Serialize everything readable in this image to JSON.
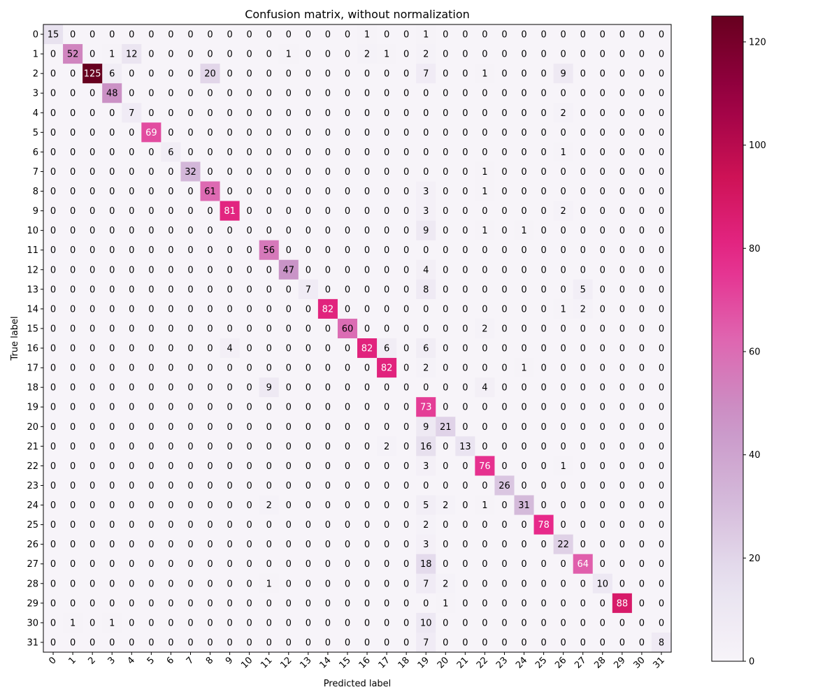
{
  "chart_data": {
    "type": "heatmap",
    "title": "Confusion matrix, without normalization",
    "xlabel": "Predicted label",
    "ylabel": "True label",
    "x_categories": [
      "0",
      "1",
      "2",
      "3",
      "4",
      "5",
      "6",
      "7",
      "8",
      "9",
      "10",
      "11",
      "12",
      "13",
      "14",
      "15",
      "16",
      "17",
      "18",
      "19",
      "20",
      "21",
      "22",
      "23",
      "24",
      "25",
      "26",
      "27",
      "28",
      "29",
      "30",
      "31"
    ],
    "y_categories": [
      "0",
      "1",
      "2",
      "3",
      "4",
      "5",
      "6",
      "7",
      "8",
      "9",
      "10",
      "11",
      "12",
      "13",
      "14",
      "15",
      "16",
      "17",
      "18",
      "19",
      "20",
      "21",
      "22",
      "23",
      "24",
      "25",
      "26",
      "27",
      "28",
      "29",
      "30",
      "31"
    ],
    "matrix": [
      [
        15,
        0,
        0,
        0,
        0,
        0,
        0,
        0,
        0,
        0,
        0,
        0,
        0,
        0,
        0,
        0,
        1,
        0,
        0,
        1,
        0,
        0,
        0,
        0,
        0,
        0,
        0,
        0,
        0,
        0,
        0,
        0
      ],
      [
        0,
        52,
        0,
        1,
        12,
        0,
        0,
        0,
        0,
        0,
        0,
        0,
        1,
        0,
        0,
        0,
        2,
        1,
        0,
        2,
        0,
        0,
        0,
        0,
        0,
        0,
        0,
        0,
        0,
        0,
        0,
        0
      ],
      [
        0,
        0,
        125,
        6,
        0,
        0,
        0,
        0,
        20,
        0,
        0,
        0,
        0,
        0,
        0,
        0,
        0,
        0,
        0,
        7,
        0,
        0,
        1,
        0,
        0,
        0,
        9,
        0,
        0,
        0,
        0,
        0
      ],
      [
        0,
        0,
        0,
        48,
        0,
        0,
        0,
        0,
        0,
        0,
        0,
        0,
        0,
        0,
        0,
        0,
        0,
        0,
        0,
        0,
        0,
        0,
        0,
        0,
        0,
        0,
        0,
        0,
        0,
        0,
        0,
        0
      ],
      [
        0,
        0,
        0,
        0,
        7,
        0,
        0,
        0,
        0,
        0,
        0,
        0,
        0,
        0,
        0,
        0,
        0,
        0,
        0,
        0,
        0,
        0,
        0,
        0,
        0,
        0,
        2,
        0,
        0,
        0,
        0,
        0
      ],
      [
        0,
        0,
        0,
        0,
        0,
        69,
        0,
        0,
        0,
        0,
        0,
        0,
        0,
        0,
        0,
        0,
        0,
        0,
        0,
        0,
        0,
        0,
        0,
        0,
        0,
        0,
        0,
        0,
        0,
        0,
        0,
        0
      ],
      [
        0,
        0,
        0,
        0,
        0,
        0,
        6,
        0,
        0,
        0,
        0,
        0,
        0,
        0,
        0,
        0,
        0,
        0,
        0,
        0,
        0,
        0,
        0,
        0,
        0,
        0,
        1,
        0,
        0,
        0,
        0,
        0
      ],
      [
        0,
        0,
        0,
        0,
        0,
        0,
        0,
        32,
        0,
        0,
        0,
        0,
        0,
        0,
        0,
        0,
        0,
        0,
        0,
        0,
        0,
        0,
        1,
        0,
        0,
        0,
        0,
        0,
        0,
        0,
        0,
        0
      ],
      [
        0,
        0,
        0,
        0,
        0,
        0,
        0,
        0,
        61,
        0,
        0,
        0,
        0,
        0,
        0,
        0,
        0,
        0,
        0,
        3,
        0,
        0,
        1,
        0,
        0,
        0,
        0,
        0,
        0,
        0,
        0,
        0
      ],
      [
        0,
        0,
        0,
        0,
        0,
        0,
        0,
        0,
        0,
        81,
        0,
        0,
        0,
        0,
        0,
        0,
        0,
        0,
        0,
        3,
        0,
        0,
        0,
        0,
        0,
        0,
        2,
        0,
        0,
        0,
        0,
        0
      ],
      [
        0,
        0,
        0,
        0,
        0,
        0,
        0,
        0,
        0,
        0,
        0,
        0,
        0,
        0,
        0,
        0,
        0,
        0,
        0,
        9,
        0,
        0,
        1,
        0,
        1,
        0,
        0,
        0,
        0,
        0,
        0,
        0
      ],
      [
        0,
        0,
        0,
        0,
        0,
        0,
        0,
        0,
        0,
        0,
        0,
        56,
        0,
        0,
        0,
        0,
        0,
        0,
        0,
        0,
        0,
        0,
        0,
        0,
        0,
        0,
        0,
        0,
        0,
        0,
        0,
        0
      ],
      [
        0,
        0,
        0,
        0,
        0,
        0,
        0,
        0,
        0,
        0,
        0,
        0,
        47,
        0,
        0,
        0,
        0,
        0,
        0,
        4,
        0,
        0,
        0,
        0,
        0,
        0,
        0,
        0,
        0,
        0,
        0,
        0
      ],
      [
        0,
        0,
        0,
        0,
        0,
        0,
        0,
        0,
        0,
        0,
        0,
        0,
        0,
        7,
        0,
        0,
        0,
        0,
        0,
        8,
        0,
        0,
        0,
        0,
        0,
        0,
        0,
        5,
        0,
        0,
        0,
        0
      ],
      [
        0,
        0,
        0,
        0,
        0,
        0,
        0,
        0,
        0,
        0,
        0,
        0,
        0,
        0,
        82,
        0,
        0,
        0,
        0,
        0,
        0,
        0,
        0,
        0,
        0,
        0,
        1,
        2,
        0,
        0,
        0,
        0
      ],
      [
        0,
        0,
        0,
        0,
        0,
        0,
        0,
        0,
        0,
        0,
        0,
        0,
        0,
        0,
        0,
        60,
        0,
        0,
        0,
        0,
        0,
        0,
        2,
        0,
        0,
        0,
        0,
        0,
        0,
        0,
        0,
        0
      ],
      [
        0,
        0,
        0,
        0,
        0,
        0,
        0,
        0,
        0,
        4,
        0,
        0,
        0,
        0,
        0,
        0,
        82,
        6,
        0,
        6,
        0,
        0,
        0,
        0,
        0,
        0,
        0,
        0,
        0,
        0,
        0,
        0
      ],
      [
        0,
        0,
        0,
        0,
        0,
        0,
        0,
        0,
        0,
        0,
        0,
        0,
        0,
        0,
        0,
        0,
        0,
        82,
        0,
        2,
        0,
        0,
        0,
        0,
        1,
        0,
        0,
        0,
        0,
        0,
        0,
        0
      ],
      [
        0,
        0,
        0,
        0,
        0,
        0,
        0,
        0,
        0,
        0,
        0,
        9,
        0,
        0,
        0,
        0,
        0,
        0,
        0,
        0,
        0,
        0,
        4,
        0,
        0,
        0,
        0,
        0,
        0,
        0,
        0,
        0
      ],
      [
        0,
        0,
        0,
        0,
        0,
        0,
        0,
        0,
        0,
        0,
        0,
        0,
        0,
        0,
        0,
        0,
        0,
        0,
        0,
        73,
        0,
        0,
        0,
        0,
        0,
        0,
        0,
        0,
        0,
        0,
        0,
        0
      ],
      [
        0,
        0,
        0,
        0,
        0,
        0,
        0,
        0,
        0,
        0,
        0,
        0,
        0,
        0,
        0,
        0,
        0,
        0,
        0,
        9,
        21,
        0,
        0,
        0,
        0,
        0,
        0,
        0,
        0,
        0,
        0,
        0
      ],
      [
        0,
        0,
        0,
        0,
        0,
        0,
        0,
        0,
        0,
        0,
        0,
        0,
        0,
        0,
        0,
        0,
        0,
        2,
        0,
        16,
        0,
        13,
        0,
        0,
        0,
        0,
        0,
        0,
        0,
        0,
        0,
        0
      ],
      [
        0,
        0,
        0,
        0,
        0,
        0,
        0,
        0,
        0,
        0,
        0,
        0,
        0,
        0,
        0,
        0,
        0,
        0,
        0,
        3,
        0,
        0,
        76,
        0,
        0,
        0,
        1,
        0,
        0,
        0,
        0,
        0
      ],
      [
        0,
        0,
        0,
        0,
        0,
        0,
        0,
        0,
        0,
        0,
        0,
        0,
        0,
        0,
        0,
        0,
        0,
        0,
        0,
        0,
        0,
        0,
        0,
        26,
        0,
        0,
        0,
        0,
        0,
        0,
        0,
        0
      ],
      [
        0,
        0,
        0,
        0,
        0,
        0,
        0,
        0,
        0,
        0,
        0,
        2,
        0,
        0,
        0,
        0,
        0,
        0,
        0,
        5,
        2,
        0,
        1,
        0,
        31,
        0,
        0,
        0,
        0,
        0,
        0,
        0
      ],
      [
        0,
        0,
        0,
        0,
        0,
        0,
        0,
        0,
        0,
        0,
        0,
        0,
        0,
        0,
        0,
        0,
        0,
        0,
        0,
        2,
        0,
        0,
        0,
        0,
        0,
        78,
        0,
        0,
        0,
        0,
        0,
        0
      ],
      [
        0,
        0,
        0,
        0,
        0,
        0,
        0,
        0,
        0,
        0,
        0,
        0,
        0,
        0,
        0,
        0,
        0,
        0,
        0,
        3,
        0,
        0,
        0,
        0,
        0,
        0,
        22,
        0,
        0,
        0,
        0,
        0
      ],
      [
        0,
        0,
        0,
        0,
        0,
        0,
        0,
        0,
        0,
        0,
        0,
        0,
        0,
        0,
        0,
        0,
        0,
        0,
        0,
        18,
        0,
        0,
        0,
        0,
        0,
        0,
        0,
        64,
        0,
        0,
        0,
        0
      ],
      [
        0,
        0,
        0,
        0,
        0,
        0,
        0,
        0,
        0,
        0,
        0,
        1,
        0,
        0,
        0,
        0,
        0,
        0,
        0,
        7,
        2,
        0,
        0,
        0,
        0,
        0,
        0,
        0,
        10,
        0,
        0,
        0
      ],
      [
        0,
        0,
        0,
        0,
        0,
        0,
        0,
        0,
        0,
        0,
        0,
        0,
        0,
        0,
        0,
        0,
        0,
        0,
        0,
        0,
        1,
        0,
        0,
        0,
        0,
        0,
        0,
        0,
        0,
        88,
        0,
        0
      ],
      [
        0,
        1,
        0,
        1,
        0,
        0,
        0,
        0,
        0,
        0,
        0,
        0,
        0,
        0,
        0,
        0,
        0,
        0,
        0,
        10,
        0,
        0,
        0,
        0,
        0,
        0,
        0,
        0,
        0,
        0,
        0,
        0
      ],
      [
        0,
        0,
        0,
        0,
        0,
        0,
        0,
        0,
        0,
        0,
        0,
        0,
        0,
        0,
        0,
        0,
        0,
        0,
        0,
        7,
        0,
        0,
        0,
        0,
        0,
        0,
        0,
        0,
        0,
        0,
        0,
        8
      ]
    ],
    "value_range": [
      0,
      125
    ],
    "colormap": "PuRd",
    "colorbar_ticks": [
      0,
      20,
      40,
      60,
      80,
      100,
      120
    ],
    "grid": false,
    "legend": "colorbar-right"
  }
}
